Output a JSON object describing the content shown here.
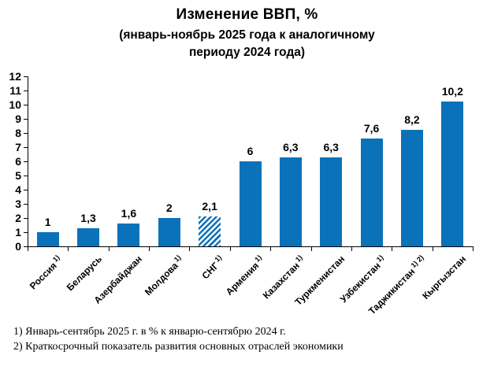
{
  "title": {
    "line1": "Изменение ВВП, %",
    "line2": "(январь-ноябрь 2025 года к аналогичному",
    "line3": "периоду 2024 года)"
  },
  "chart_data": {
    "type": "bar",
    "title": "Изменение ВВП, %",
    "subtitle": "(январь-ноябрь 2025 года к аналогичному периоду 2024 года)",
    "categories": [
      "Россия",
      "Беларусь",
      "Азербайджан",
      "Молдова",
      "СНГ",
      "Армения",
      "Казахстан",
      "Туркменистан",
      "Узбекистан",
      "Таджикистан",
      "Кыргызстан"
    ],
    "category_superscripts": [
      "1)",
      "",
      "",
      "1)",
      "1)",
      "1)",
      "1)",
      "",
      "1)",
      "1) 2)",
      ""
    ],
    "values": [
      1,
      1.3,
      1.6,
      2,
      2.1,
      6,
      6.3,
      6.3,
      7.6,
      8.2,
      10.2
    ],
    "value_labels": [
      "1",
      "1,3",
      "1,6",
      "2",
      "2,1",
      "6",
      "6,3",
      "6,3",
      "7,6",
      "8,2",
      "10,2"
    ],
    "hatched_index": 4,
    "hatch_style": "diagonal-stripes",
    "bar_color": "#0a72b9",
    "y_axis": {
      "min": 0,
      "max": 12,
      "step": 1
    },
    "xlabel": "",
    "ylabel": "",
    "grid": false,
    "legend": false
  },
  "footnotes": [
    "1) Январь-сентябрь 2025 г. в % к январю-сентябрю 2024 г.",
    "2) Краткосрочный показатель развития основных отраслей экономики"
  ]
}
